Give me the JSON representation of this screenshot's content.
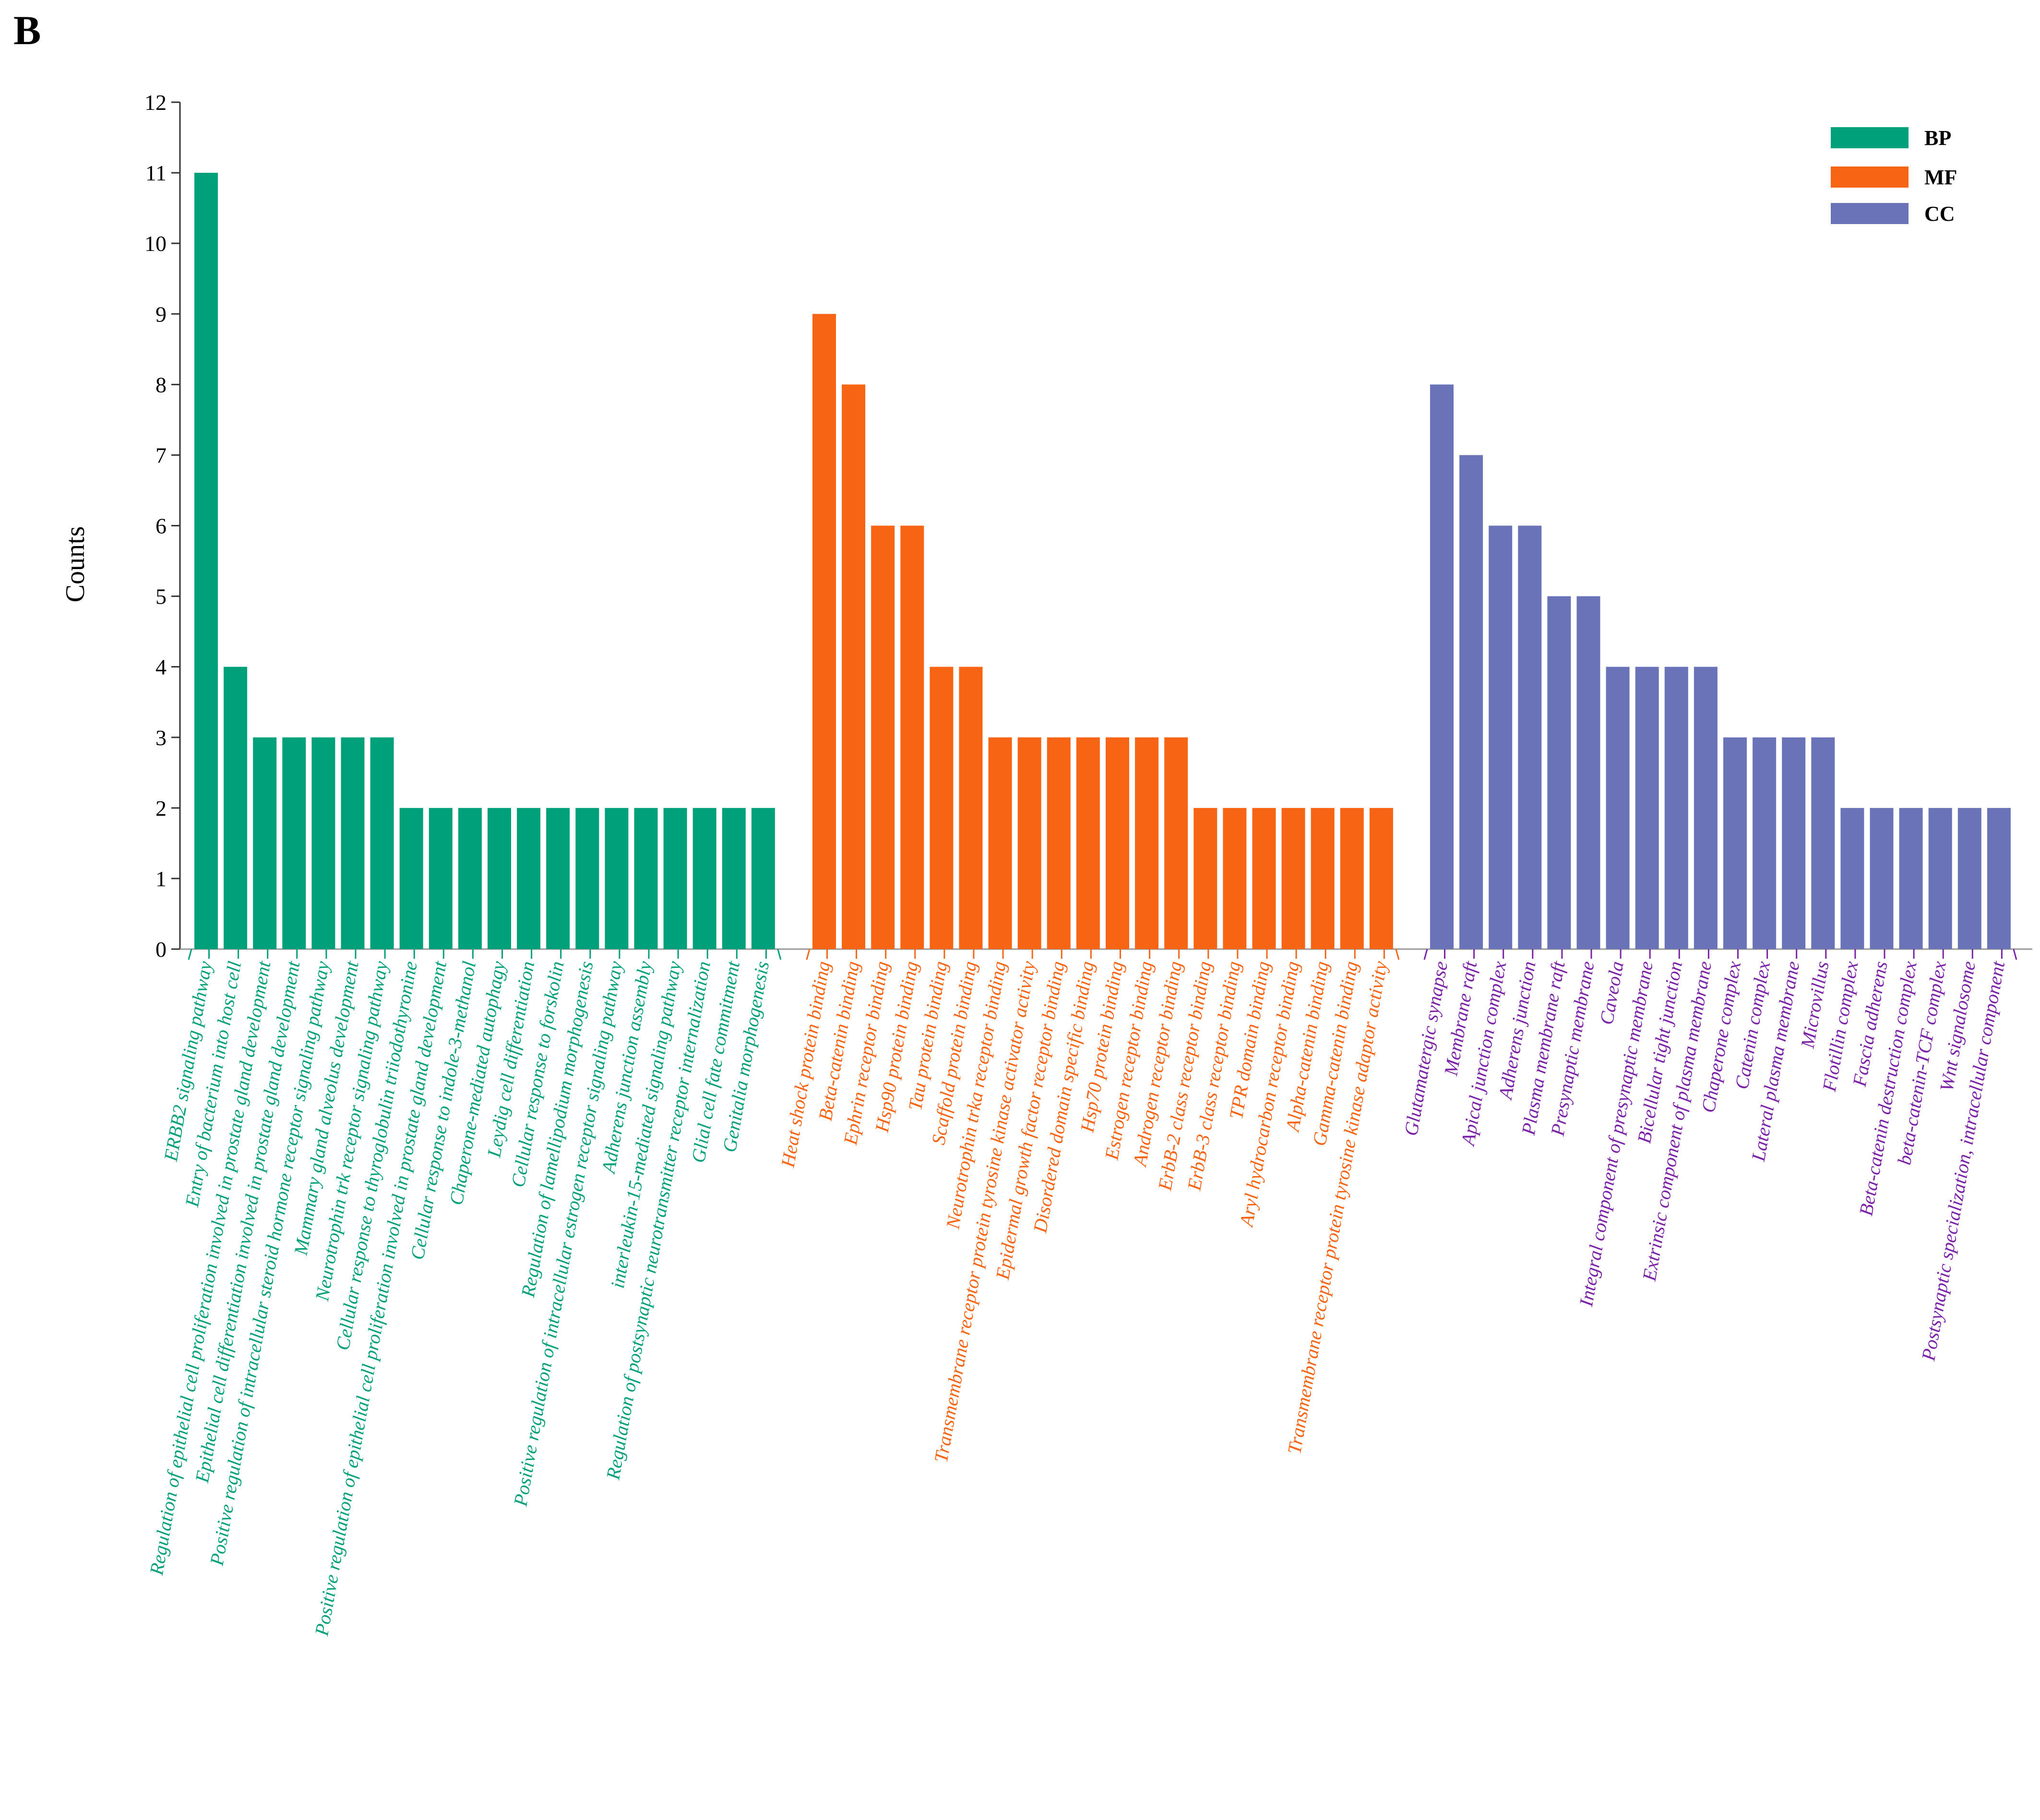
{
  "panel_label": "B",
  "chart_data": {
    "type": "bar",
    "title": "",
    "xlabel": "",
    "ylabel": "Counts",
    "ylim": [
      0,
      12
    ],
    "yticks": [
      "0",
      "1",
      "2",
      "3",
      "4",
      "5",
      "6",
      "7",
      "8",
      "9",
      "10",
      "11",
      "12"
    ],
    "legend_position": "top-right",
    "series": [
      {
        "name": "BP",
        "color": "#00a07a",
        "label_color": "#00a07a",
        "categories": [
          "ERBB2 signaling pathway",
          "Entry of bacterium into host cell",
          "Regulation of epithelial cell proliferation involved in prostate gland development",
          "Epithelial cell differentiation involved in prostate gland development",
          "Positive regulation of intracellular steroid hormone receptor signaling pathway",
          "Mammary gland alveolus development",
          "Neurotrophin trk receptor signaling pathway",
          "Cellular response to thyroglobulin triiodothyronine",
          "Positive regulation of epithelial cell proliferation involved in prostate gland development",
          "Cellular response to indole-3-methanol",
          "Chaperone-mediated autophagy",
          "Leydig cell differentiation",
          "Cellular response to forskolin",
          "Regulation of lamellipodium morphogenesis",
          "Positive regulation of intracellular estrogen receptor signaling pathway",
          "Adherens junction assembly",
          "interleukin-15-mediated signaling pathway",
          "Regulation of postsynaptic neurotransmitter receptor internalization",
          "Glial cell fate commitment",
          "Genitalia morphogenesis"
        ],
        "values": [
          11,
          4,
          3,
          3,
          3,
          3,
          3,
          2,
          2,
          2,
          2,
          2,
          2,
          2,
          2,
          2,
          2,
          2,
          2,
          2
        ]
      },
      {
        "name": "MF",
        "color": "#f76414",
        "label_color": "#f76414",
        "categories": [
          "Heat shock protein binding",
          "Beta-catenin binding",
          "Ephrin receptor binding",
          "Hsp90 protein binding",
          "Tau protein binding",
          "Scaffold protein binding",
          "Neurotrophin trka receptor binding",
          "Transmembrane receptor protein tyrosine kinase activator activity",
          "Epidermal growth factor receptor binding",
          "Disordered domain specific binding",
          "Hsp70 protein binding",
          "Estrogen receptor binding",
          "Androgen receptor binding",
          "ErbB-2 class receptor binding",
          "ErbB-3 class receptor binding",
          "TPR domain binding",
          "Aryl hydrocarbon receptor binding",
          "Alpha-catenin binding",
          "Gamma-catenin binding",
          "Transmembrane receptor protein tyrosine kinase adaptor activity"
        ],
        "values": [
          9,
          8,
          6,
          6,
          4,
          4,
          3,
          3,
          3,
          3,
          3,
          3,
          3,
          2,
          2,
          2,
          2,
          2,
          2,
          2
        ]
      },
      {
        "name": "CC",
        "color": "#6b73b8",
        "label_color": "#7b22a8",
        "categories": [
          "Glutamatergic synapse",
          "Membrane raft",
          "Apical junction complex",
          "Adherens junction",
          "Plasma membrane raft",
          "Presynaptic membrane",
          "Caveola",
          "Integral component of presynaptic membrane",
          "Bicellular tight junction",
          "Extrinsic component of plasma membrane",
          "Chaperone complex",
          "Catenin complex",
          "Lateral plasma membrane",
          "Microvillus",
          "Flotillin complex",
          "Fascia adherens",
          "Beta-catenin destruction complex",
          "beta-catenin-TCF complex",
          "Wnt signalosome",
          "Postsynaptic specialization, intracellular component"
        ],
        "values": [
          8,
          7,
          6,
          6,
          5,
          5,
          4,
          4,
          4,
          4,
          3,
          3,
          3,
          3,
          2,
          2,
          2,
          2,
          2,
          2
        ]
      }
    ]
  }
}
